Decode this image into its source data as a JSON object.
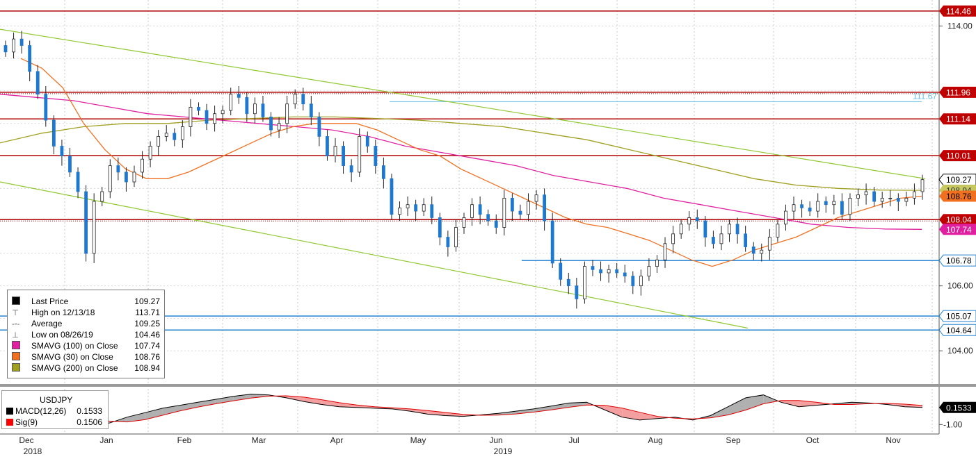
{
  "chart_data": [
    {
      "type": "candlestick",
      "title": "USDJPY",
      "ylim": [
        103.0,
        114.8
      ],
      "y_ticks": [
        104.0,
        106.0,
        114.0
      ],
      "x_month_labels": [
        "Dec",
        "Jan",
        "Feb",
        "Mar",
        "Apr",
        "May",
        "Jun",
        "Jul",
        "Aug",
        "Sep",
        "Oct",
        "Nov"
      ],
      "x_year_labels": [
        "2018",
        "2019"
      ],
      "approx_closes": [
        113.2,
        113.6,
        113.4,
        112.6,
        111.9,
        111.1,
        110.3,
        110.0,
        109.5,
        108.9,
        107.0,
        108.6,
        108.9,
        109.7,
        109.5,
        109.2,
        109.5,
        109.9,
        110.3,
        110.6,
        110.7,
        110.5,
        110.9,
        111.5,
        111.4,
        111.0,
        111.3,
        111.4,
        111.9,
        111.8,
        111.3,
        111.6,
        111.2,
        110.8,
        111.0,
        111.6,
        111.9,
        111.6,
        111.2,
        110.6,
        110.0,
        110.3,
        109.7,
        109.5,
        110.6,
        110.3,
        109.7,
        109.3,
        108.2,
        108.4,
        108.5,
        108.3,
        108.5,
        108.1,
        107.5,
        107.2,
        107.8,
        108.1,
        108.5,
        108.2,
        108.0,
        107.8,
        108.7,
        108.3,
        108.2,
        108.6,
        108.8,
        108.0,
        106.7,
        106.2,
        106.0,
        105.6,
        106.6,
        106.5,
        106.4,
        106.5,
        106.4,
        106.3,
        106.0,
        106.3,
        106.6,
        106.8,
        107.3,
        107.6,
        107.9,
        108.1,
        108.0,
        107.5,
        107.3,
        107.6,
        107.9,
        107.6,
        107.2,
        107.0,
        107.1,
        107.5,
        107.9,
        108.3,
        108.5,
        108.4,
        108.3,
        108.6,
        108.5,
        108.6,
        108.2,
        108.7,
        108.8,
        108.9,
        108.6,
        108.7,
        108.7,
        108.6,
        108.7,
        108.9,
        109.27
      ],
      "approx_sma30": [
        113.0,
        112.7,
        112.1,
        111.0,
        110.2,
        109.6,
        109.3,
        109.3,
        109.5,
        109.8,
        110.1,
        110.4,
        110.7,
        110.9,
        111.0,
        111.0,
        111.0,
        110.8,
        110.5,
        110.2,
        110.0,
        109.6,
        109.3,
        109.0,
        108.7,
        108.4,
        108.1,
        107.9,
        107.8,
        107.6,
        107.4,
        107.1,
        106.8,
        106.6,
        106.8,
        107.1,
        107.3,
        107.5,
        107.8,
        108.1,
        108.3,
        108.5,
        108.7,
        108.76
      ],
      "approx_sma100": [
        111.9,
        111.8,
        111.7,
        111.5,
        111.3,
        111.2,
        111.1,
        111.0,
        110.9,
        110.8,
        110.6,
        110.3,
        110.1,
        109.9,
        109.7,
        109.4,
        109.2,
        109.0,
        108.7,
        108.5,
        108.3,
        108.1,
        107.9,
        107.8,
        107.75,
        107.74
      ],
      "approx_sma200": [
        110.4,
        110.7,
        110.9,
        111.0,
        111.0,
        111.1,
        111.15,
        111.2,
        111.2,
        111.15,
        111.1,
        111.0,
        110.9,
        110.7,
        110.5,
        110.2,
        109.9,
        109.6,
        109.3,
        109.1,
        109.0,
        108.95,
        108.94
      ],
      "horizontal_levels": [
        114.46,
        111.96,
        111.14,
        110.01,
        108.04,
        106.78,
        105.07,
        104.64
      ],
      "level_label_dotted": "111.67",
      "right_axis_labels": [
        {
          "value": 114.46,
          "text": "114.46",
          "color": "#c00000"
        },
        {
          "value": 111.96,
          "text": "111.96",
          "color": "#c00000"
        },
        {
          "value": 111.14,
          "text": "111.14",
          "color": "#c00000"
        },
        {
          "value": 110.01,
          "text": "110.01",
          "color": "#c00000"
        },
        {
          "value": 109.27,
          "text": "109.27",
          "color": "#000000"
        },
        {
          "value": 108.94,
          "text": "108.94",
          "color": "#a0a020"
        },
        {
          "value": 108.76,
          "text": "108.76",
          "color": "#f07020"
        },
        {
          "value": 108.04,
          "text": "108.04",
          "color": "#c00000"
        },
        {
          "value": 107.74,
          "text": "107.74",
          "color": "#e020a0"
        },
        {
          "value": 106.78,
          "text": "106.78",
          "color": "#2080d0"
        },
        {
          "value": 105.07,
          "text": "105.07",
          "color": "#2080d0"
        },
        {
          "value": 104.64,
          "text": "104.64",
          "color": "#2080d0"
        }
      ]
    },
    {
      "type": "line",
      "title": "USDJPY",
      "ylim": [
        -1.5,
        1.5
      ],
      "y_ticks": [
        -1.0
      ],
      "series": [
        {
          "name": "MACD(12,26)",
          "last": 0.1533
        },
        {
          "name": "Sig(9)",
          "last": 0.1506
        }
      ],
      "last_label": "0.1533"
    }
  ],
  "legend": {
    "rows": [
      {
        "label": "Last Price",
        "value": "109.27",
        "marker": "square",
        "color": "#000000"
      },
      {
        "label": "High on 12/13/18",
        "value": "113.71",
        "marker": "high",
        "color": "#555555"
      },
      {
        "label": "Average",
        "value": "109.25",
        "marker": "avg",
        "color": "#555555"
      },
      {
        "label": "Low on 08/26/19",
        "value": "104.46",
        "marker": "low",
        "color": "#555555"
      },
      {
        "label": "SMAVG (100)  on Close",
        "value": "107.74",
        "marker": "square",
        "color": "#e020a0"
      },
      {
        "label": "SMAVG (30)  on Close",
        "value": "108.76",
        "marker": "square",
        "color": "#f07020"
      },
      {
        "label": "SMAVG (200)  on Close",
        "value": "108.94",
        "marker": "square",
        "color": "#a0a020"
      }
    ]
  },
  "macd_legend": {
    "title": "USDJPY",
    "rows": [
      {
        "label": "MACD(12,26)",
        "value": "0.1533",
        "color": "#000000"
      },
      {
        "label": "Sig(9)",
        "value": "0.1506",
        "color": "#ff0000"
      }
    ]
  }
}
